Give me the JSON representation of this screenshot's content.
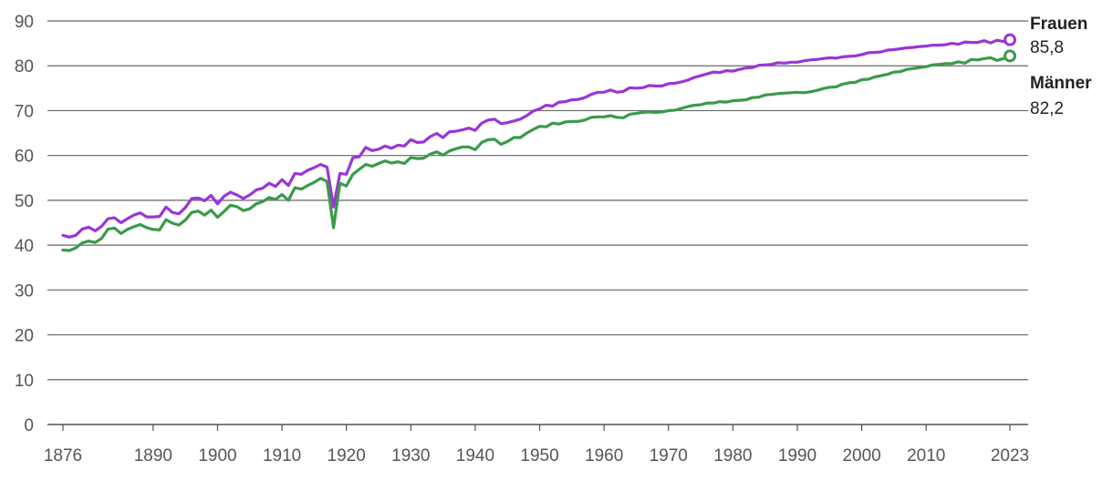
{
  "chart_data": {
    "type": "line",
    "title": "",
    "xlabel": "",
    "ylabel": "",
    "xlim": [
      1876,
      2023
    ],
    "ylim": [
      0,
      90
    ],
    "y_ticks": [
      0,
      10,
      20,
      30,
      40,
      50,
      60,
      70,
      80,
      90
    ],
    "x_ticks": [
      1876,
      1890,
      1900,
      1910,
      1920,
      1930,
      1940,
      1950,
      1960,
      1970,
      1980,
      1990,
      2000,
      2010,
      2023
    ],
    "grid": true,
    "series": [
      {
        "name": "Frauen",
        "end_label": "85,8",
        "color": "#9b35d6",
        "points": [
          [
            1876,
            42.2
          ],
          [
            1877,
            41.8
          ],
          [
            1878,
            42.2
          ],
          [
            1879,
            43.6
          ],
          [
            1880,
            44.0
          ],
          [
            1881,
            43.2
          ],
          [
            1882,
            44.2
          ],
          [
            1883,
            45.9
          ],
          [
            1884,
            46.1
          ],
          [
            1885,
            45.0
          ],
          [
            1886,
            45.9
          ],
          [
            1887,
            46.7
          ],
          [
            1888,
            47.2
          ],
          [
            1889,
            46.3
          ],
          [
            1890,
            46.3
          ],
          [
            1891,
            46.4
          ],
          [
            1892,
            48.5
          ],
          [
            1893,
            47.3
          ],
          [
            1894,
            47.0
          ],
          [
            1895,
            48.4
          ],
          [
            1896,
            50.4
          ],
          [
            1897,
            50.5
          ],
          [
            1898,
            49.9
          ],
          [
            1899,
            51.1
          ],
          [
            1900,
            49.2
          ],
          [
            1901,
            50.9
          ],
          [
            1902,
            51.8
          ],
          [
            1903,
            51.2
          ],
          [
            1904,
            50.4
          ],
          [
            1905,
            51.2
          ],
          [
            1906,
            52.3
          ],
          [
            1907,
            52.7
          ],
          [
            1908,
            53.8
          ],
          [
            1909,
            53.1
          ],
          [
            1910,
            54.6
          ],
          [
            1911,
            53.3
          ],
          [
            1912,
            56.0
          ],
          [
            1913,
            55.8
          ],
          [
            1914,
            56.7
          ],
          [
            1915,
            57.3
          ],
          [
            1916,
            58.0
          ],
          [
            1917,
            57.4
          ],
          [
            1918,
            48.5
          ],
          [
            1919,
            56.0
          ],
          [
            1920,
            55.8
          ],
          [
            1921,
            59.5
          ],
          [
            1922,
            59.7
          ],
          [
            1923,
            61.8
          ],
          [
            1924,
            61.1
          ],
          [
            1925,
            61.4
          ],
          [
            1926,
            62.1
          ],
          [
            1927,
            61.6
          ],
          [
            1928,
            62.3
          ],
          [
            1929,
            62.1
          ],
          [
            1930,
            63.5
          ],
          [
            1931,
            62.9
          ],
          [
            1932,
            63.0
          ],
          [
            1933,
            64.2
          ],
          [
            1934,
            64.9
          ],
          [
            1935,
            64.0
          ],
          [
            1936,
            65.3
          ],
          [
            1937,
            65.4
          ],
          [
            1938,
            65.7
          ],
          [
            1939,
            66.1
          ],
          [
            1940,
            65.6
          ],
          [
            1941,
            67.2
          ],
          [
            1942,
            67.9
          ],
          [
            1943,
            68.1
          ],
          [
            1944,
            67.1
          ],
          [
            1945,
            67.3
          ],
          [
            1946,
            67.7
          ],
          [
            1947,
            68.1
          ],
          [
            1948,
            68.9
          ],
          [
            1949,
            69.9
          ],
          [
            1950,
            70.4
          ],
          [
            1951,
            71.2
          ],
          [
            1952,
            71.0
          ],
          [
            1953,
            71.9
          ],
          [
            1954,
            72.0
          ],
          [
            1955,
            72.4
          ],
          [
            1956,
            72.5
          ],
          [
            1957,
            72.9
          ],
          [
            1958,
            73.6
          ],
          [
            1959,
            74.1
          ],
          [
            1960,
            74.1
          ],
          [
            1961,
            74.6
          ],
          [
            1962,
            74.1
          ],
          [
            1963,
            74.3
          ],
          [
            1964,
            75.1
          ],
          [
            1965,
            75.0
          ],
          [
            1966,
            75.1
          ],
          [
            1967,
            75.6
          ],
          [
            1968,
            75.5
          ],
          [
            1969,
            75.5
          ],
          [
            1970,
            76.0
          ],
          [
            1971,
            76.1
          ],
          [
            1972,
            76.4
          ],
          [
            1973,
            76.8
          ],
          [
            1974,
            77.4
          ],
          [
            1975,
            77.8
          ],
          [
            1976,
            78.2
          ],
          [
            1977,
            78.6
          ],
          [
            1978,
            78.5
          ],
          [
            1979,
            78.9
          ],
          [
            1980,
            78.8
          ],
          [
            1981,
            79.2
          ],
          [
            1982,
            79.5
          ],
          [
            1983,
            79.6
          ],
          [
            1984,
            80.1
          ],
          [
            1985,
            80.2
          ],
          [
            1986,
            80.3
          ],
          [
            1987,
            80.7
          ],
          [
            1988,
            80.6
          ],
          [
            1989,
            80.8
          ],
          [
            1990,
            80.8
          ],
          [
            1991,
            81.1
          ],
          [
            1992,
            81.3
          ],
          [
            1993,
            81.4
          ],
          [
            1994,
            81.6
          ],
          [
            1995,
            81.8
          ],
          [
            1996,
            81.7
          ],
          [
            1997,
            82.0
          ],
          [
            1998,
            82.1
          ],
          [
            1999,
            82.2
          ],
          [
            2000,
            82.5
          ],
          [
            2001,
            82.9
          ],
          [
            2002,
            83.0
          ],
          [
            2003,
            83.1
          ],
          [
            2004,
            83.5
          ],
          [
            2005,
            83.6
          ],
          [
            2006,
            83.8
          ],
          [
            2007,
            84.0
          ],
          [
            2008,
            84.1
          ],
          [
            2009,
            84.3
          ],
          [
            2010,
            84.4
          ],
          [
            2011,
            84.6
          ],
          [
            2012,
            84.6
          ],
          [
            2013,
            84.7
          ],
          [
            2014,
            85.0
          ],
          [
            2015,
            84.8
          ],
          [
            2016,
            85.3
          ],
          [
            2017,
            85.2
          ],
          [
            2018,
            85.2
          ],
          [
            2019,
            85.6
          ],
          [
            2020,
            85.1
          ],
          [
            2021,
            85.7
          ],
          [
            2022,
            85.4
          ],
          [
            2023,
            85.8
          ]
        ]
      },
      {
        "name": "Männer",
        "end_label": "82,2",
        "color": "#3a9a48",
        "points": [
          [
            1876,
            38.9
          ],
          [
            1877,
            38.8
          ],
          [
            1878,
            39.4
          ],
          [
            1879,
            40.5
          ],
          [
            1880,
            40.9
          ],
          [
            1881,
            40.6
          ],
          [
            1882,
            41.5
          ],
          [
            1883,
            43.6
          ],
          [
            1884,
            43.8
          ],
          [
            1885,
            42.6
          ],
          [
            1886,
            43.5
          ],
          [
            1887,
            44.1
          ],
          [
            1888,
            44.6
          ],
          [
            1889,
            43.9
          ],
          [
            1890,
            43.5
          ],
          [
            1891,
            43.4
          ],
          [
            1892,
            45.7
          ],
          [
            1893,
            44.9
          ],
          [
            1894,
            44.5
          ],
          [
            1895,
            45.6
          ],
          [
            1896,
            47.3
          ],
          [
            1897,
            47.6
          ],
          [
            1898,
            46.7
          ],
          [
            1899,
            47.8
          ],
          [
            1900,
            46.2
          ],
          [
            1901,
            47.5
          ],
          [
            1902,
            48.9
          ],
          [
            1903,
            48.6
          ],
          [
            1904,
            47.7
          ],
          [
            1905,
            48.1
          ],
          [
            1906,
            49.2
          ],
          [
            1907,
            49.7
          ],
          [
            1908,
            50.6
          ],
          [
            1909,
            50.2
          ],
          [
            1910,
            51.3
          ],
          [
            1911,
            50.0
          ],
          [
            1912,
            52.8
          ],
          [
            1913,
            52.5
          ],
          [
            1914,
            53.3
          ],
          [
            1915,
            54.0
          ],
          [
            1916,
            54.9
          ],
          [
            1917,
            54.2
          ],
          [
            1918,
            43.9
          ],
          [
            1919,
            53.8
          ],
          [
            1920,
            53.2
          ],
          [
            1921,
            55.8
          ],
          [
            1922,
            56.9
          ],
          [
            1923,
            58.0
          ],
          [
            1924,
            57.6
          ],
          [
            1925,
            58.2
          ],
          [
            1926,
            58.8
          ],
          [
            1927,
            58.3
          ],
          [
            1928,
            58.6
          ],
          [
            1929,
            58.2
          ],
          [
            1930,
            59.5
          ],
          [
            1931,
            59.3
          ],
          [
            1932,
            59.4
          ],
          [
            1933,
            60.3
          ],
          [
            1934,
            60.8
          ],
          [
            1935,
            60.1
          ],
          [
            1936,
            61.0
          ],
          [
            1937,
            61.5
          ],
          [
            1938,
            61.9
          ],
          [
            1939,
            61.9
          ],
          [
            1940,
            61.3
          ],
          [
            1941,
            62.9
          ],
          [
            1942,
            63.5
          ],
          [
            1943,
            63.6
          ],
          [
            1944,
            62.5
          ],
          [
            1945,
            63.1
          ],
          [
            1946,
            64.0
          ],
          [
            1947,
            64.0
          ],
          [
            1948,
            65.0
          ],
          [
            1949,
            65.8
          ],
          [
            1950,
            66.5
          ],
          [
            1951,
            66.4
          ],
          [
            1952,
            67.2
          ],
          [
            1953,
            67.0
          ],
          [
            1954,
            67.5
          ],
          [
            1955,
            67.6
          ],
          [
            1956,
            67.6
          ],
          [
            1957,
            67.9
          ],
          [
            1958,
            68.5
          ],
          [
            1959,
            68.6
          ],
          [
            1960,
            68.6
          ],
          [
            1961,
            68.9
          ],
          [
            1962,
            68.5
          ],
          [
            1963,
            68.4
          ],
          [
            1964,
            69.2
          ],
          [
            1965,
            69.4
          ],
          [
            1966,
            69.6
          ],
          [
            1967,
            69.7
          ],
          [
            1968,
            69.6
          ],
          [
            1969,
            69.7
          ],
          [
            1970,
            70.0
          ],
          [
            1971,
            70.1
          ],
          [
            1972,
            70.5
          ],
          [
            1973,
            70.9
          ],
          [
            1974,
            71.2
          ],
          [
            1975,
            71.3
          ],
          [
            1976,
            71.7
          ],
          [
            1977,
            71.7
          ],
          [
            1978,
            72.0
          ],
          [
            1979,
            71.9
          ],
          [
            1980,
            72.2
          ],
          [
            1981,
            72.3
          ],
          [
            1982,
            72.4
          ],
          [
            1983,
            72.9
          ],
          [
            1984,
            73.0
          ],
          [
            1985,
            73.5
          ],
          [
            1986,
            73.6
          ],
          [
            1987,
            73.8
          ],
          [
            1988,
            73.9
          ],
          [
            1989,
            74.0
          ],
          [
            1990,
            74.1
          ],
          [
            1991,
            74.0
          ],
          [
            1992,
            74.2
          ],
          [
            1993,
            74.5
          ],
          [
            1994,
            74.9
          ],
          [
            1995,
            75.2
          ],
          [
            1996,
            75.3
          ],
          [
            1997,
            75.9
          ],
          [
            1998,
            76.2
          ],
          [
            1999,
            76.3
          ],
          [
            2000,
            76.9
          ],
          [
            2001,
            77.0
          ],
          [
            2002,
            77.5
          ],
          [
            2003,
            77.8
          ],
          [
            2004,
            78.1
          ],
          [
            2005,
            78.6
          ],
          [
            2006,
            78.7
          ],
          [
            2007,
            79.2
          ],
          [
            2008,
            79.4
          ],
          [
            2009,
            79.6
          ],
          [
            2010,
            79.8
          ],
          [
            2011,
            80.2
          ],
          [
            2012,
            80.3
          ],
          [
            2013,
            80.5
          ],
          [
            2014,
            80.5
          ],
          [
            2015,
            80.9
          ],
          [
            2016,
            80.6
          ],
          [
            2017,
            81.4
          ],
          [
            2018,
            81.3
          ],
          [
            2019,
            81.6
          ],
          [
            2020,
            81.8
          ],
          [
            2021,
            81.2
          ],
          [
            2022,
            81.6
          ],
          [
            2023,
            82.2
          ]
        ]
      }
    ]
  }
}
